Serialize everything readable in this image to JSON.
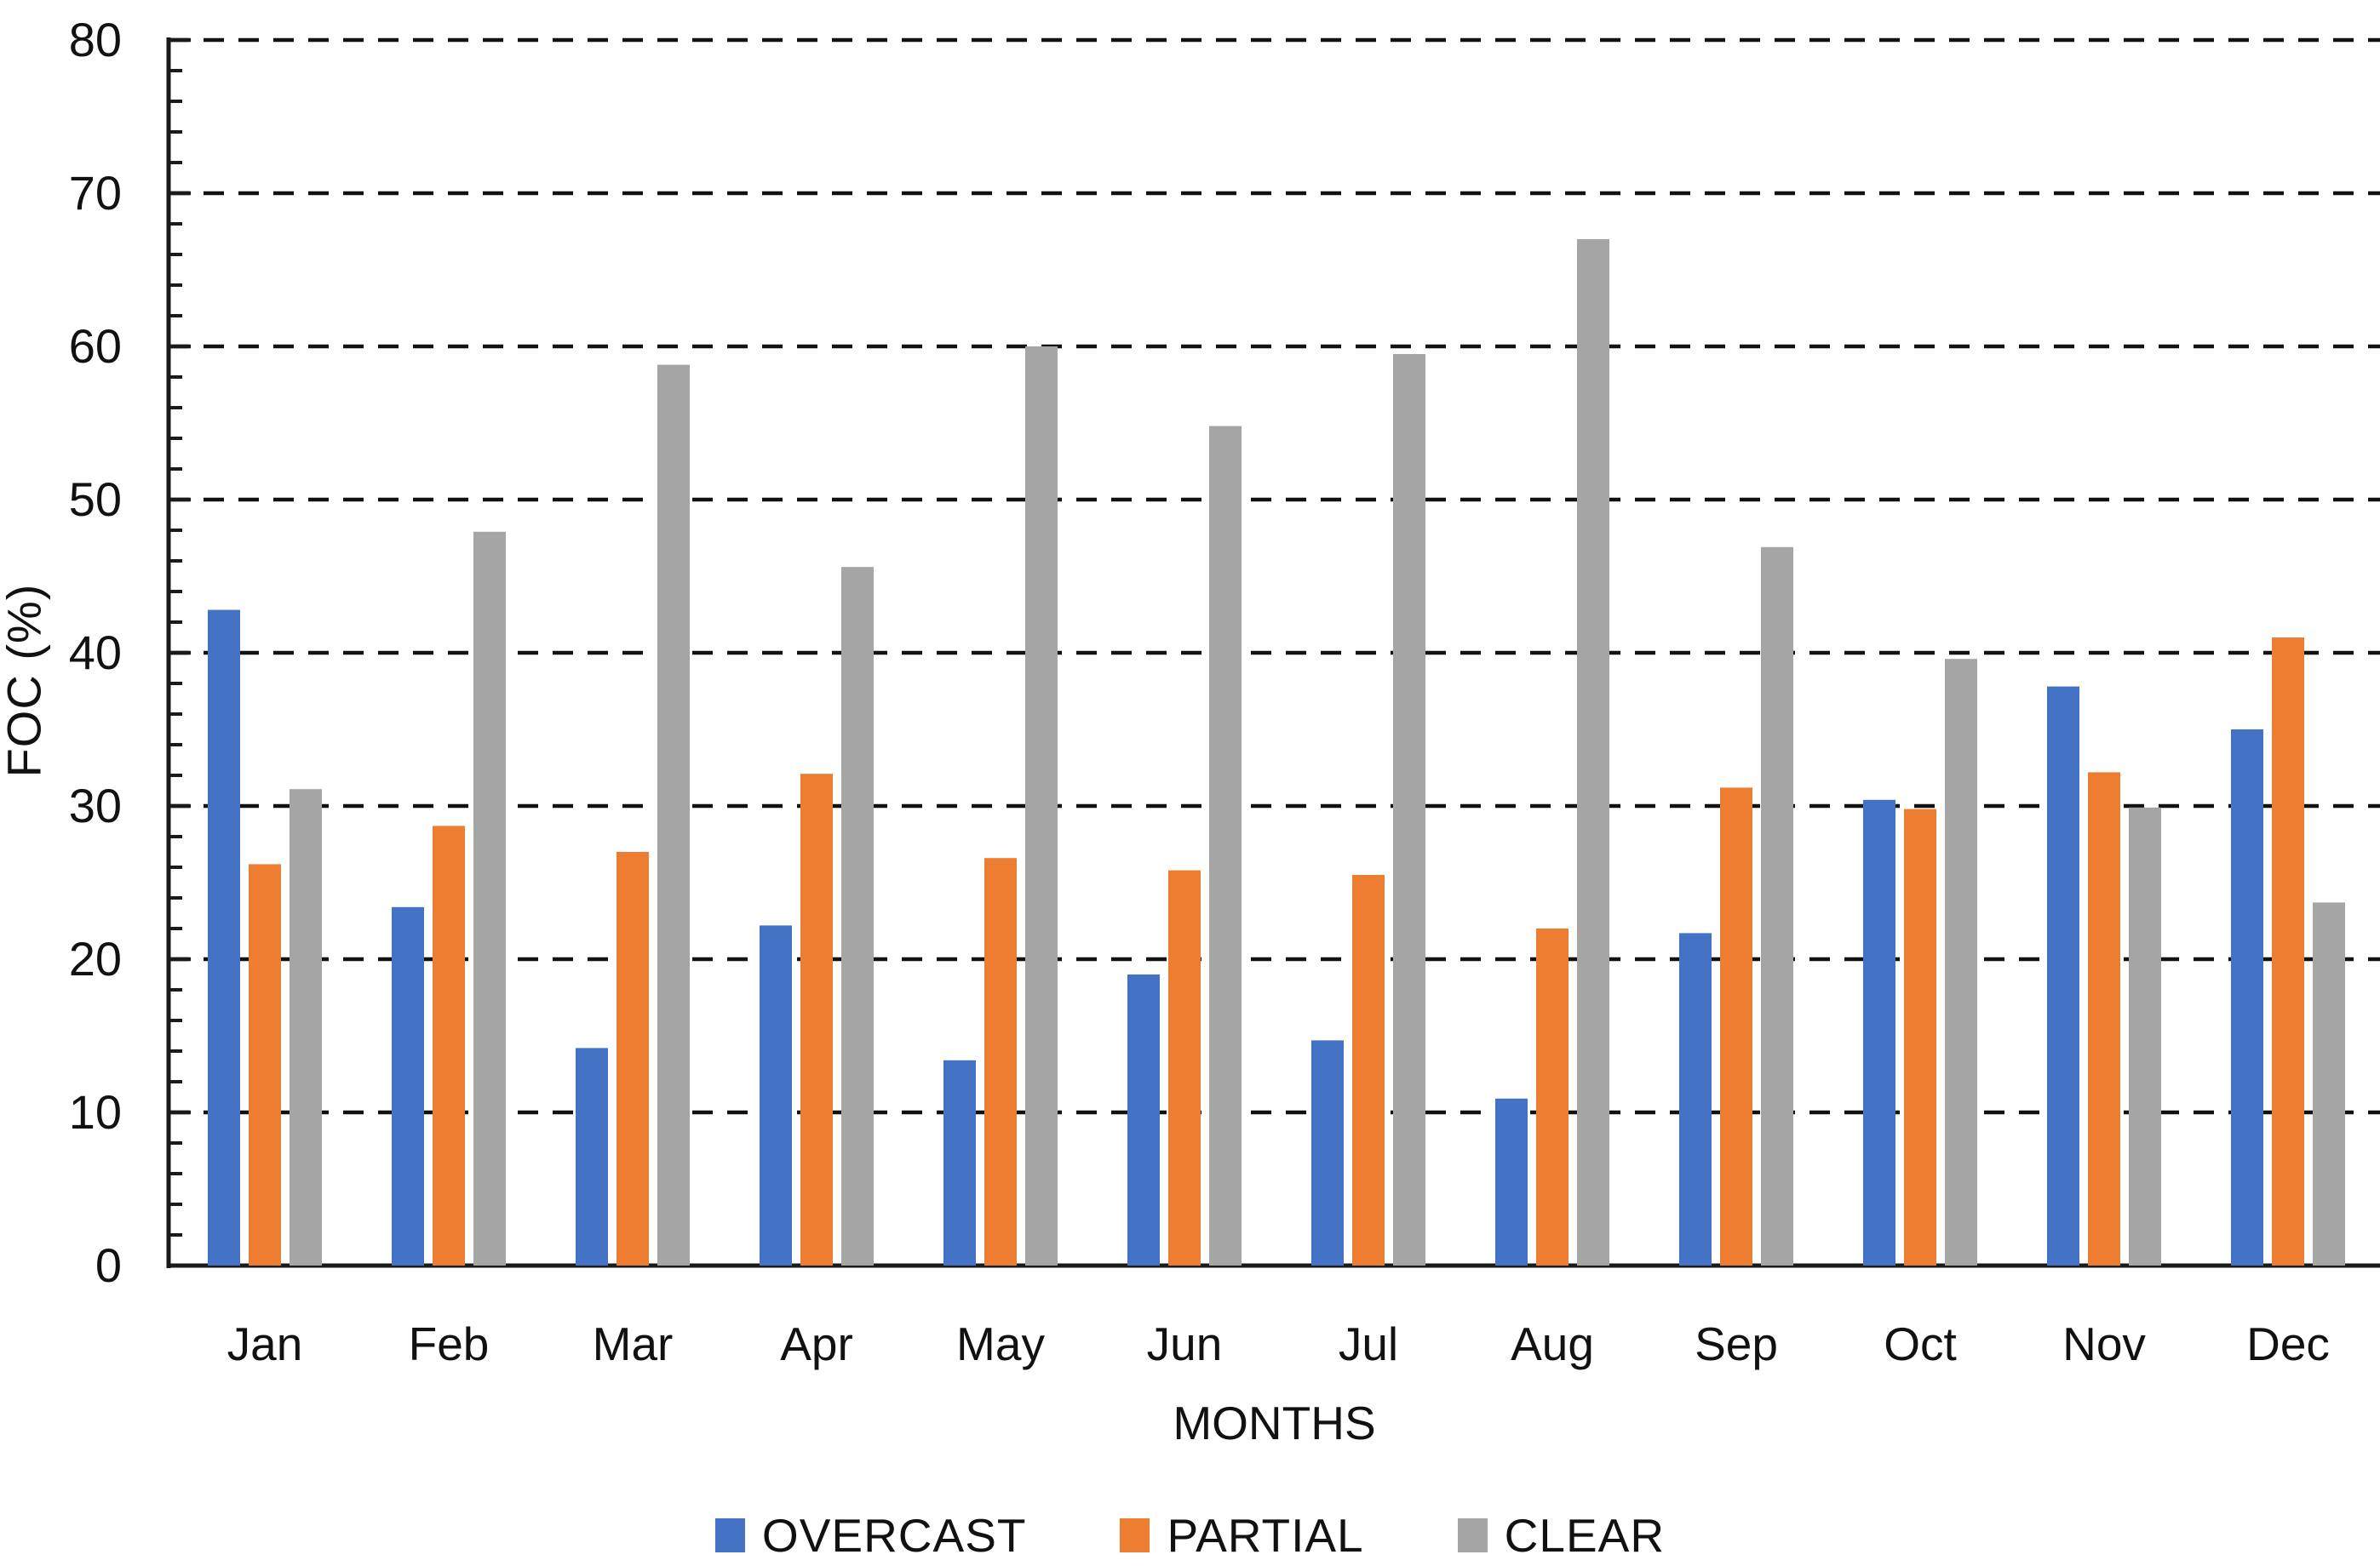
{
  "chart_data": {
    "type": "bar",
    "title": "",
    "xlabel": "MONTHS",
    "ylabel": "FOC (%)",
    "ylim": [
      0,
      80
    ],
    "y_major_step": 10,
    "y_minor_step": 2,
    "grid": "horizontal dashed lines at major ticks",
    "legend_position": "bottom",
    "categories": [
      "Jan",
      "Feb",
      "Mar",
      "Apr",
      "May",
      "Jun",
      "Jul",
      "Aug",
      "Sep",
      "Oct",
      "Nov",
      "Dec"
    ],
    "series": [
      {
        "name": "OVERCAST",
        "color": "#4472C4",
        "values": [
          42.8,
          23.4,
          14.2,
          22.2,
          13.4,
          19.0,
          14.7,
          10.9,
          21.7,
          30.4,
          37.8,
          35.0
        ]
      },
      {
        "name": "PARTIAL",
        "color": "#ED7D31",
        "values": [
          26.2,
          28.7,
          27.0,
          32.1,
          26.6,
          25.8,
          25.5,
          22.0,
          31.2,
          29.8,
          32.2,
          41.0
        ]
      },
      {
        "name": "CLEAR",
        "color": "#A5A5A5",
        "values": [
          31.1,
          47.9,
          58.8,
          45.6,
          60.0,
          54.8,
          59.5,
          67.0,
          46.9,
          39.6,
          29.9,
          23.7
        ]
      }
    ],
    "y_tick_labels": [
      "0",
      "10",
      "20",
      "30",
      "40",
      "50",
      "60",
      "70",
      "80"
    ],
    "axis_color": "#1a1a1a",
    "gridline_color": "#111111"
  }
}
